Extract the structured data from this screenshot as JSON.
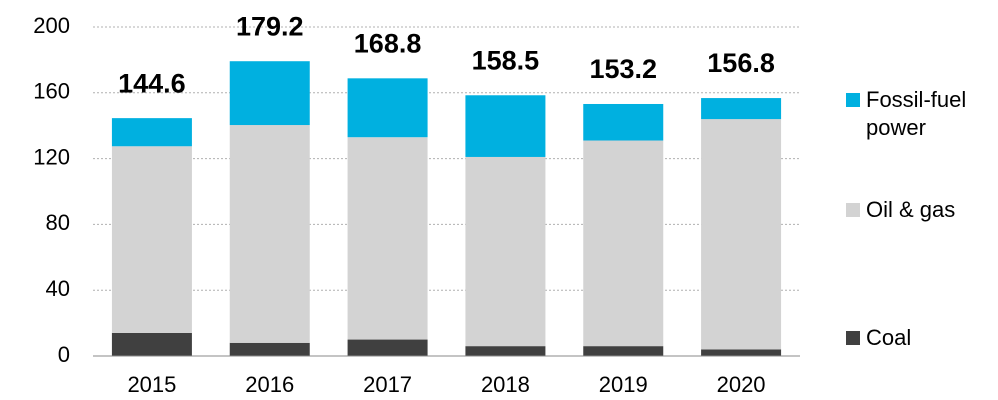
{
  "chart_data": {
    "type": "stacked_bar",
    "categories": [
      "2015",
      "2016",
      "2017",
      "2018",
      "2019",
      "2020"
    ],
    "series": [
      {
        "name": "Coal",
        "color": "#404040",
        "values": [
          14,
          8,
          10,
          6,
          6,
          4
        ]
      },
      {
        "name": "Oil & gas",
        "color": "#d3d3d3",
        "values": [
          113.5,
          132.4,
          123,
          115,
          125,
          140
        ]
      },
      {
        "name": "Fossil-fuel power",
        "color": "#00b0e0",
        "values": [
          17.1,
          38.8,
          35.8,
          37.5,
          22.2,
          12.8
        ]
      }
    ],
    "totals": [
      144.6,
      179.2,
      168.8,
      158.5,
      153.2,
      156.8
    ],
    "ylim": [
      0,
      200
    ],
    "yticks": [
      0,
      40,
      80,
      120,
      160,
      200
    ],
    "grid": true
  }
}
